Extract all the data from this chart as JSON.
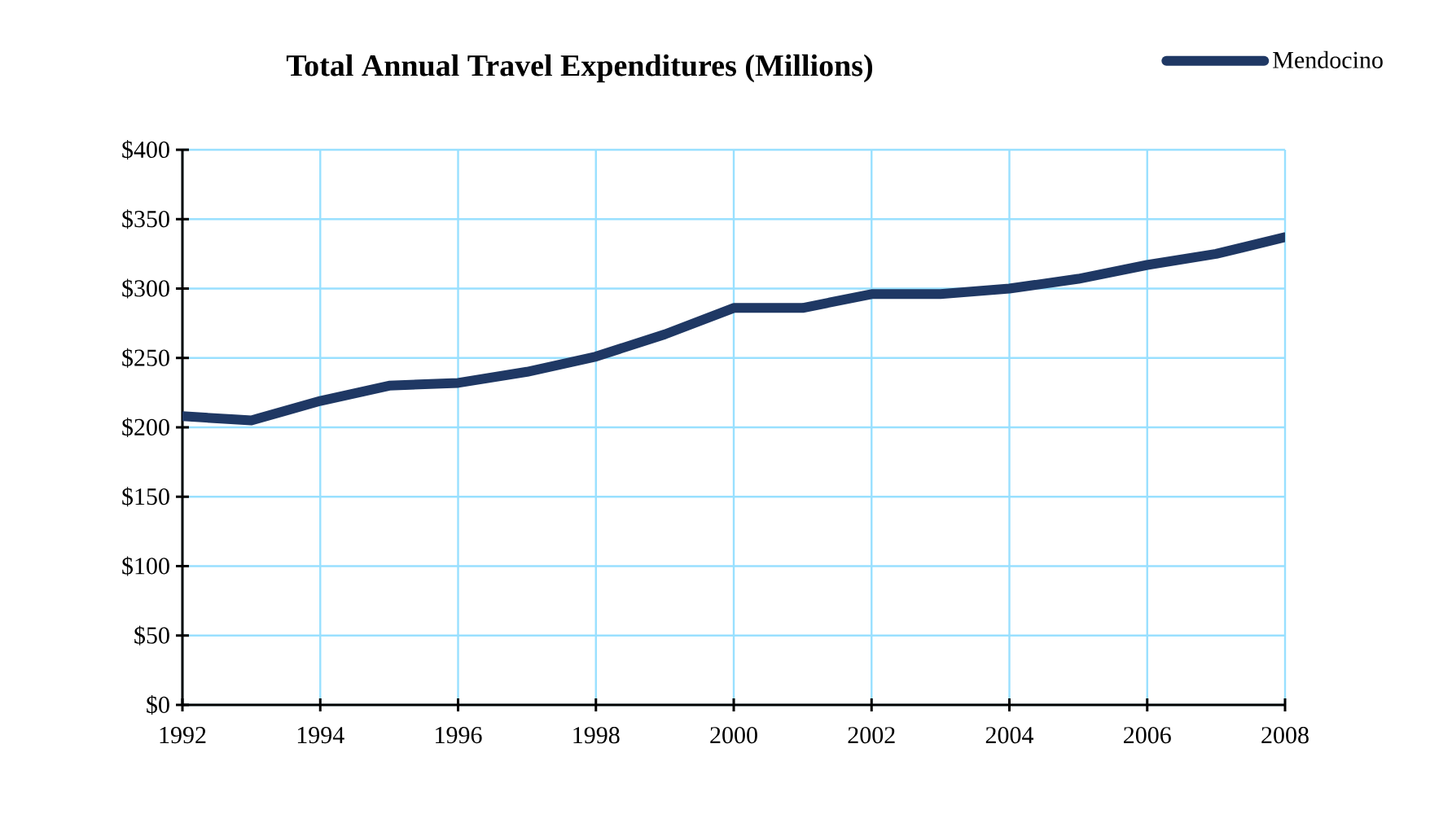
{
  "chart_data": {
    "type": "line",
    "title": "Total Annual Travel Expenditures (Millions)",
    "x": [
      1992,
      1993,
      1994,
      1995,
      1996,
      1997,
      1998,
      1999,
      2000,
      2001,
      2002,
      2003,
      2004,
      2005,
      2006,
      2007,
      2008
    ],
    "series": [
      {
        "name": "Mendocino",
        "color": "#1f3864",
        "values": [
          208,
          205,
          219,
          230,
          232,
          240,
          251,
          267,
          286,
          286,
          296,
          296,
          300,
          307,
          317,
          325,
          337
        ]
      }
    ],
    "xlim": [
      1992,
      2008
    ],
    "xticks": [
      1992,
      1994,
      1996,
      1998,
      2000,
      2002,
      2004,
      2006,
      2008
    ],
    "ylim": [
      0,
      400
    ],
    "yticks": [
      {
        "value": 0,
        "label": "$0"
      },
      {
        "value": 50,
        "label": "$50"
      },
      {
        "value": 100,
        "label": "$100"
      },
      {
        "value": 150,
        "label": "$150"
      },
      {
        "value": 200,
        "label": "$200"
      },
      {
        "value": 250,
        "label": "$250"
      },
      {
        "value": 300,
        "label": "$300"
      },
      {
        "value": 350,
        "label": "$350"
      },
      {
        "value": 400,
        "label": "$400"
      }
    ],
    "grid": true,
    "legend": "top right",
    "marker": "none",
    "line_style": "solid"
  }
}
